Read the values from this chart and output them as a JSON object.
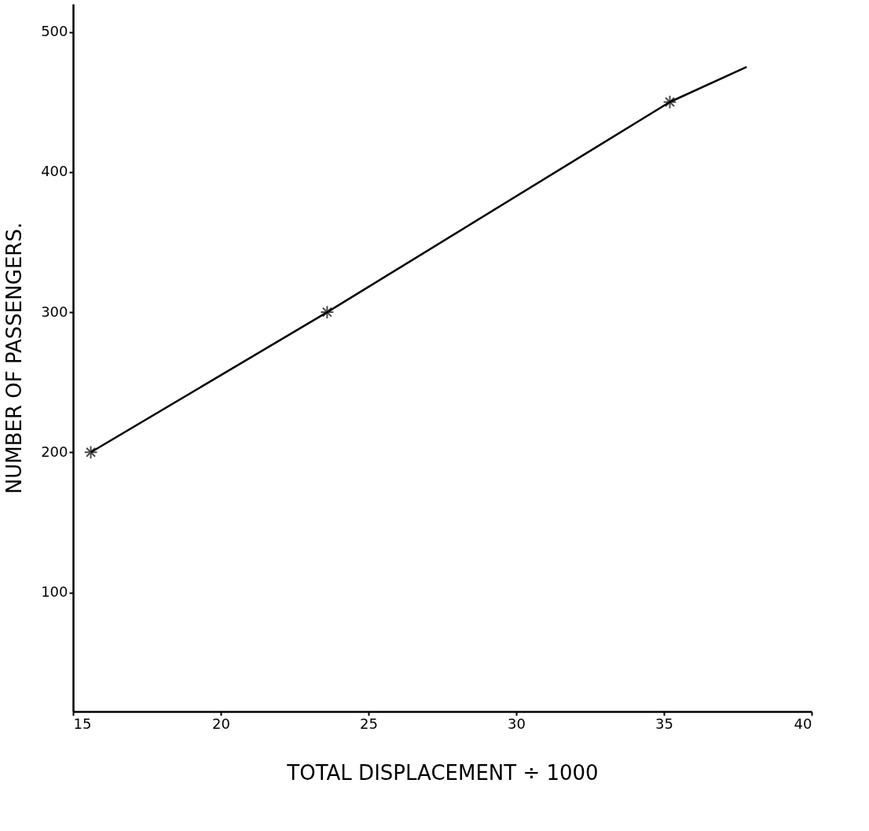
{
  "chart_data": {
    "type": "line",
    "xlabel": "TOTAL DISPLACEMENT ÷ 1000",
    "ylabel": "NUMBER OF PASSENGERS.",
    "xlim": [
      15,
      40
    ],
    "xticks": [
      15,
      20,
      25,
      30,
      35,
      40
    ],
    "ylim": [
      15,
      520
    ],
    "yticks": [
      100,
      200,
      300,
      400,
      500
    ],
    "grid": false,
    "series": [
      {
        "color": "#000000",
        "marker": "none",
        "x": [
          15.6,
          23.6,
          35.2,
          37.8
        ],
        "values": [
          200,
          300,
          450,
          475
        ]
      },
      {
        "type": "scatter",
        "color": "#000000",
        "marker": "cross",
        "x": [
          15.6,
          23.6,
          35.2
        ],
        "values": [
          200,
          300,
          450
        ]
      }
    ]
  }
}
